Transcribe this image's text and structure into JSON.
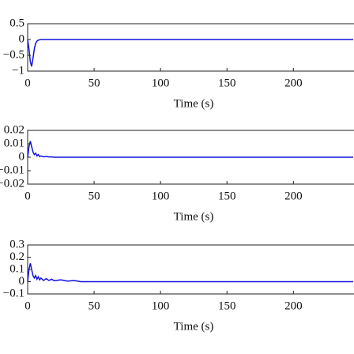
{
  "chart_data": [
    {
      "type": "line",
      "xlabel": "Time (s)",
      "color": "#1010e0",
      "x": [
        0,
        1,
        2,
        3,
        4,
        5,
        6,
        7,
        8,
        10,
        15,
        245
      ],
      "values": [
        0,
        -0.3,
        -0.7,
        -0.85,
        -0.6,
        -0.3,
        -0.12,
        -0.05,
        -0.02,
        0,
        0,
        0
      ],
      "xlim": [
        0,
        245
      ],
      "xticks": [
        0,
        50,
        100,
        150,
        200
      ],
      "ylim": [
        -1,
        0.5
      ],
      "yticks": [
        0.5,
        0,
        {
          "value": -0.5,
          "label": "−0.5"
        },
        {
          "value": -1,
          "label": "−1"
        }
      ]
    },
    {
      "type": "line",
      "xlabel": "Time (s)",
      "color": "#1010e0",
      "x": [
        0,
        1,
        2,
        3,
        4,
        5,
        6,
        7,
        8,
        9,
        10,
        12,
        14,
        16,
        18,
        20,
        245
      ],
      "values": [
        0,
        0.008,
        0.012,
        0.008,
        0.004,
        0.002,
        0.003,
        0.001,
        0.002,
        0.0005,
        0.001,
        0.0003,
        0.0006,
        0.0002,
        0.0003,
        0,
        0
      ],
      "xlim": [
        0,
        245
      ],
      "xticks": [
        0,
        50,
        100,
        150,
        200
      ],
      "ylim": [
        -0.02,
        0.02
      ],
      "yticks": [
        0.02,
        0.01,
        0,
        {
          "value": -0.01,
          "label": "−0.01"
        },
        {
          "value": -0.02,
          "label": "−0.02"
        }
      ]
    },
    {
      "type": "line",
      "xlabel": "Time (s)",
      "color": "#1010e0",
      "x": [
        0,
        1,
        2,
        3,
        4,
        5,
        6,
        7,
        8,
        9,
        10,
        12,
        14,
        16,
        18,
        20,
        25,
        30,
        35,
        40,
        245
      ],
      "values": [
        0,
        0.1,
        0.15,
        0.1,
        0.05,
        0.03,
        0.05,
        0.02,
        0.04,
        0.015,
        0.03,
        0.01,
        0.025,
        0.01,
        0.02,
        0.008,
        0.015,
        0.005,
        0.01,
        0,
        0
      ],
      "xlim": [
        0,
        245
      ],
      "xticks": [
        0,
        50,
        100,
        150,
        200
      ],
      "ylim": [
        -0.1,
        0.3
      ],
      "yticks": [
        0.3,
        0.2,
        0.1,
        0,
        {
          "value": -0.1,
          "label": "−0.1"
        }
      ]
    }
  ]
}
